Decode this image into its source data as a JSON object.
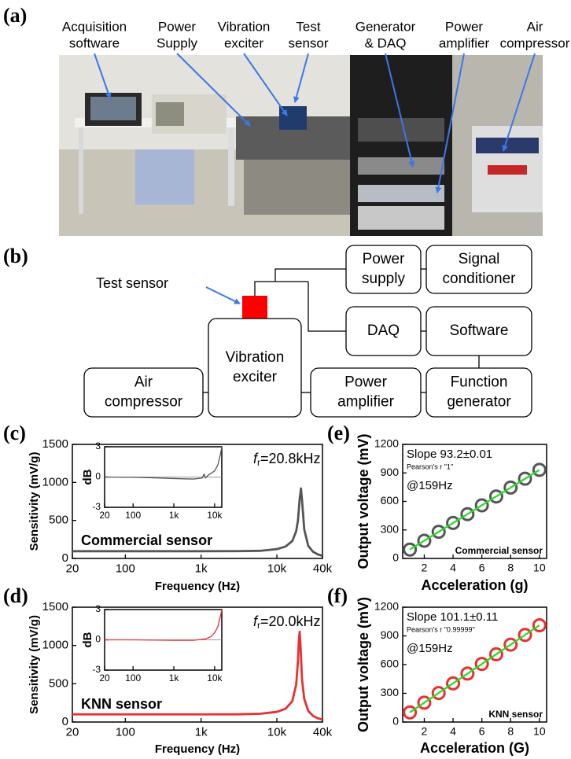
{
  "panel_labels": [
    "(a)",
    "(b)",
    "(c)",
    "(d)",
    "(e)",
    "(f)"
  ],
  "photo": {
    "labels": [
      [
        "Acquisition",
        "software"
      ],
      [
        "Power",
        "Supply"
      ],
      [
        "Vibration",
        "exciter"
      ],
      [
        "Test",
        "sensor"
      ],
      [
        "Generator",
        "& DAQ"
      ],
      [
        "Power",
        "amplifier"
      ],
      [
        "Air",
        "compressor"
      ]
    ]
  },
  "diagram": {
    "annotation": "Test sensor",
    "nodes": [
      {
        "lines": [
          "Power",
          "supply"
        ]
      },
      {
        "lines": [
          "Signal",
          "conditioner"
        ]
      },
      {
        "lines": [
          "DAQ"
        ]
      },
      {
        "lines": [
          "Software"
        ]
      },
      {
        "lines": [
          "Vibration",
          "exciter"
        ]
      },
      {
        "lines": [
          "Air",
          "compressor"
        ]
      },
      {
        "lines": [
          "Power",
          "amplifier"
        ]
      },
      {
        "lines": [
          "Function",
          "generator"
        ]
      }
    ]
  },
  "chart_data": [
    {
      "type": "line",
      "xscale": "log",
      "xlabel": "Frequency (Hz)",
      "ylabel": "Sensitivity (mV/g)",
      "label": "Commercial sensor",
      "resonance": {
        "symbol": "f",
        "subscript": "r",
        "text": "=20.8kHz"
      },
      "xlim": [
        20,
        40000
      ],
      "xticks": [
        20,
        100,
        {
          "value": 1000,
          "label": "1k"
        },
        {
          "value": 10000,
          "label": "10k"
        },
        {
          "value": 40000,
          "label": "40k"
        }
      ],
      "ylim": [
        0,
        1500
      ],
      "yticks": [
        0,
        500,
        1000,
        1500
      ],
      "series": [
        {
          "color": "#555555",
          "x": [
            20,
            50,
            100,
            300,
            1000,
            3000,
            6000,
            10000,
            13000,
            16000,
            18000,
            19000,
            20000,
            20800,
            21500,
            23000,
            26000,
            30000,
            35000,
            40000
          ],
          "values": [
            95,
            95,
            95,
            95,
            95,
            96,
            100,
            123,
            156,
            229,
            358,
            501,
            779,
            920,
            765,
            381,
            165,
            88,
            52,
            35
          ]
        }
      ],
      "inset": {
        "type": "line",
        "xscale": "log",
        "ylabel": "dB",
        "xlim": [
          20,
          15000
        ],
        "xticks": [
          20,
          100,
          {
            "value": 1000,
            "label": "1k"
          },
          {
            "value": 10000,
            "label": "10k"
          }
        ],
        "ylim": [
          -3,
          3
        ],
        "yticks": [
          -3,
          0,
          3
        ],
        "reference_line": 0,
        "series": [
          {
            "color": "#555555",
            "x": [
              20,
              100,
              300,
              1000,
              3000,
              5000,
              5500,
              6000,
              7000,
              10000,
              12000,
              14000,
              15000
            ],
            "values": [
              0,
              -0.02,
              -0.08,
              -0.15,
              -0.2,
              -0.1,
              0.3,
              -0.1,
              0.2,
              0.6,
              1.2,
              2.3,
              3
            ]
          }
        ]
      }
    },
    {
      "type": "line",
      "xscale": "log",
      "xlabel": "Frequency (Hz)",
      "ylabel": "Sensitivity (mV/g)",
      "label": "KNN sensor",
      "resonance": {
        "symbol": "f",
        "subscript": "r",
        "text": "=20.0kHz"
      },
      "xlim": [
        20,
        40000
      ],
      "xticks": [
        20,
        100,
        {
          "value": 1000,
          "label": "1k"
        },
        {
          "value": 10000,
          "label": "10k"
        },
        {
          "value": 40000,
          "label": "40k"
        }
      ],
      "ylim": [
        0,
        1500
      ],
      "yticks": [
        0,
        500,
        1000,
        1500
      ],
      "series": [
        {
          "color": "#e83030",
          "x": [
            20,
            50,
            100,
            300,
            1000,
            3000,
            6000,
            10000,
            13000,
            16000,
            18000,
            19000,
            19500,
            20000,
            20500,
            21500,
            23000,
            26000,
            30000,
            35000,
            40000
          ],
          "values": [
            100,
            100,
            100,
            100,
            100,
            101,
            108,
            133,
            173,
            273,
            490,
            797,
            1053,
            1180,
            1010,
            556,
            300,
            145,
            80,
            48,
            33
          ]
        }
      ],
      "inset": {
        "type": "line",
        "xscale": "log",
        "ylabel": "dB",
        "xlim": [
          20,
          15000
        ],
        "xticks": [
          20,
          100,
          {
            "value": 1000,
            "label": "1k"
          },
          {
            "value": 10000,
            "label": "10k"
          }
        ],
        "ylim": [
          -3,
          3
        ],
        "yticks": [
          -3,
          0,
          3
        ],
        "reference_line": 0,
        "series": [
          {
            "color": "#e83030",
            "x": [
              20,
              100,
              1000,
              3000,
              6000,
              8000,
              10000,
              12000,
              14000,
              15000
            ],
            "values": [
              0,
              0,
              -0.05,
              -0.05,
              0.1,
              0.3,
              0.7,
              1.3,
              2.4,
              3
            ]
          }
        ]
      }
    },
    {
      "type": "scatter",
      "xlabel": "Acceleration (g)",
      "ylabel": "Output voltage (mV)",
      "slope": "Slope 93.2±0.01",
      "pearson": "Pearson's r \"1\"",
      "frequency": "@159Hz",
      "label": "Commercial sensor",
      "xlim": [
        0.5,
        10.5
      ],
      "xticks": [
        2,
        4,
        6,
        8,
        10
      ],
      "ylim": [
        0,
        1200
      ],
      "yticks": [
        0,
        300,
        600,
        900,
        1200
      ],
      "series": [
        {
          "color": "#555555",
          "x": [
            1,
            2,
            3,
            4,
            5,
            6,
            7,
            8,
            9,
            10
          ],
          "values": [
            93,
            186,
            280,
            373,
            466,
            559,
            652,
            746,
            839,
            932
          ]
        }
      ],
      "fit": {
        "color": "#22dd22",
        "x": [
          1,
          10
        ],
        "values": [
          93.2,
          932
        ]
      }
    },
    {
      "type": "scatter",
      "xlabel": "Acceleration (G)",
      "ylabel": "Output voltage (mV)",
      "slope": "Slope 101.1±0.11",
      "pearson": "Pearson's r \"0.99999\"",
      "frequency": "@159Hz",
      "label": "KNN sensor",
      "xlim": [
        0.5,
        10.5
      ],
      "xticks": [
        2,
        4,
        6,
        8,
        10
      ],
      "ylim": [
        0,
        1200
      ],
      "yticks": [
        0,
        300,
        600,
        900,
        1200
      ],
      "series": [
        {
          "color": "#e83030",
          "x": [
            1,
            2,
            3,
            4,
            5,
            6,
            7,
            8,
            9,
            10
          ],
          "values": [
            101,
            202,
            303,
            404,
            506,
            607,
            708,
            809,
            910,
            1011
          ]
        }
      ],
      "fit": {
        "color": "#22dd22",
        "x": [
          1,
          10
        ],
        "values": [
          101.1,
          1011
        ]
      }
    }
  ]
}
